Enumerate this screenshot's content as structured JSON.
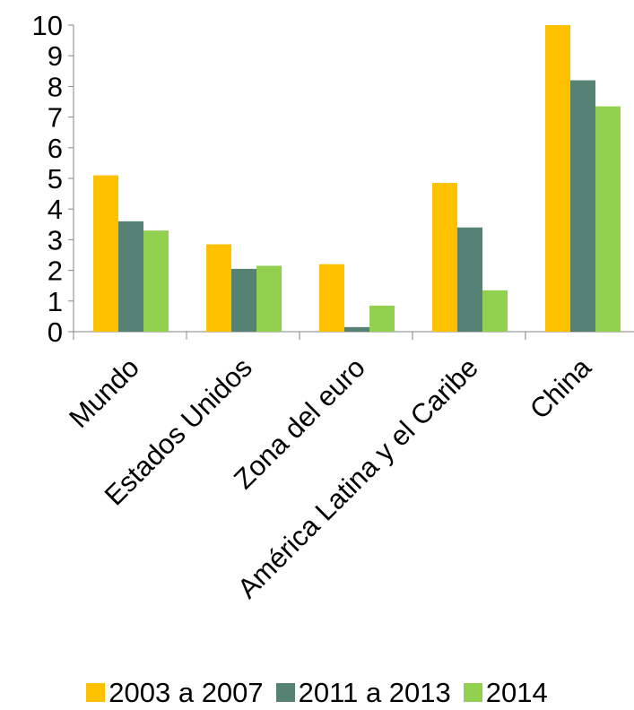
{
  "chart_data": {
    "type": "bar",
    "categories": [
      "Mundo",
      "Estados Unidos",
      "Zona del euro",
      "América Latina y el Caribe",
      "China"
    ],
    "series": [
      {
        "name": "2003 a 2007",
        "values": [
          5.1,
          2.85,
          2.2,
          4.85,
          10.0
        ],
        "color": "#FFC000"
      },
      {
        "name": "2011 a 2013",
        "values": [
          3.6,
          2.05,
          0.15,
          3.4,
          8.2
        ],
        "color": "#568275"
      },
      {
        "name": "2014",
        "values": [
          3.3,
          2.15,
          0.85,
          1.35,
          7.35
        ],
        "color": "#92D050"
      }
    ],
    "ylim": [
      0,
      10
    ],
    "yticks": [
      "0",
      "1",
      "2",
      "3",
      "4",
      "5",
      "6",
      "7",
      "8",
      "9",
      "10"
    ],
    "grid": false,
    "legend_position": "bottom"
  }
}
